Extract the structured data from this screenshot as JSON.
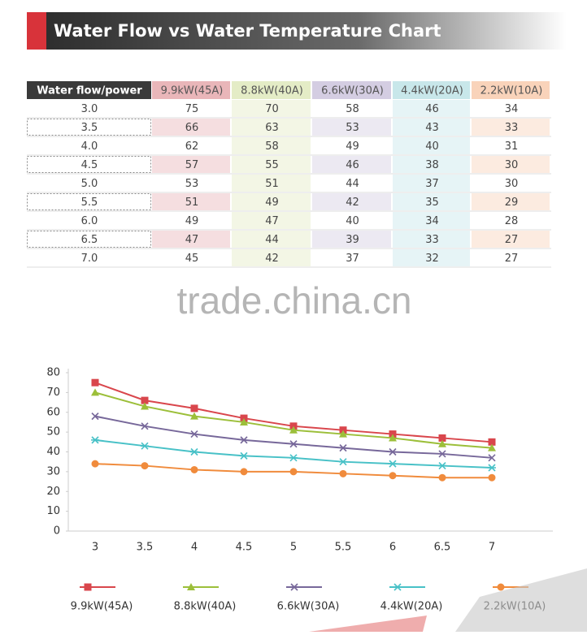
{
  "header": {
    "title": "Water Flow vs Water Temperature Chart"
  },
  "table": {
    "columns": [
      "Water flow/power",
      "9.9kW(45A)",
      "8.8kW(40A)",
      "6.6kW(30A)",
      "4.4kW(20A)",
      "2.2kW(10A)"
    ],
    "column_colors": [
      "#3a3a3a",
      "#e9b6b9",
      "#e4ecc6",
      "#d4cde2",
      "#c8e7ea",
      "#f9d3ba"
    ],
    "rows": [
      [
        "3.0",
        "75",
        "70",
        "58",
        "46",
        "34"
      ],
      [
        "3.5",
        "66",
        "63",
        "53",
        "43",
        "33"
      ],
      [
        "4.0",
        "62",
        "58",
        "49",
        "40",
        "31"
      ],
      [
        "4.5",
        "57",
        "55",
        "46",
        "38",
        "30"
      ],
      [
        "5.0",
        "53",
        "51",
        "44",
        "37",
        "30"
      ],
      [
        "5.5",
        "51",
        "49",
        "42",
        "35",
        "29"
      ],
      [
        "6.0",
        "49",
        "47",
        "40",
        "34",
        "28"
      ],
      [
        "6.5",
        "47",
        "44",
        "39",
        "33",
        "27"
      ],
      [
        "7.0",
        "45",
        "42",
        "37",
        "32",
        "27"
      ]
    ]
  },
  "watermark": "trade.china.cn",
  "chart_data": {
    "type": "line",
    "categories": [
      "3",
      "3.5",
      "4",
      "4.5",
      "5",
      "5.5",
      "6",
      "6.5",
      "7"
    ],
    "ylim": [
      0,
      80
    ],
    "yticks": [
      0,
      10,
      20,
      30,
      40,
      50,
      60,
      70,
      80
    ],
    "grid": false,
    "series": [
      {
        "name": "9.9kW(45A)",
        "color": "#d9464c",
        "marker": "square",
        "values": [
          75,
          66,
          62,
          57,
          53,
          51,
          49,
          47,
          45
        ]
      },
      {
        "name": "8.8kW(40A)",
        "color": "#9cbf3a",
        "marker": "triangle",
        "values": [
          70,
          63,
          58,
          55,
          51,
          49,
          47,
          44,
          42
        ]
      },
      {
        "name": "6.6kW(30A)",
        "color": "#77689a",
        "marker": "x",
        "values": [
          58,
          53,
          49,
          46,
          44,
          42,
          40,
          39,
          37
        ]
      },
      {
        "name": "4.4kW(20A)",
        "color": "#48c1c7",
        "marker": "star",
        "values": [
          46,
          43,
          40,
          38,
          37,
          35,
          34,
          33,
          32
        ]
      },
      {
        "name": "2.2kW(10A)",
        "color": "#f08b3c",
        "marker": "circle",
        "values": [
          34,
          33,
          31,
          30,
          30,
          29,
          28,
          27,
          27
        ]
      }
    ]
  }
}
